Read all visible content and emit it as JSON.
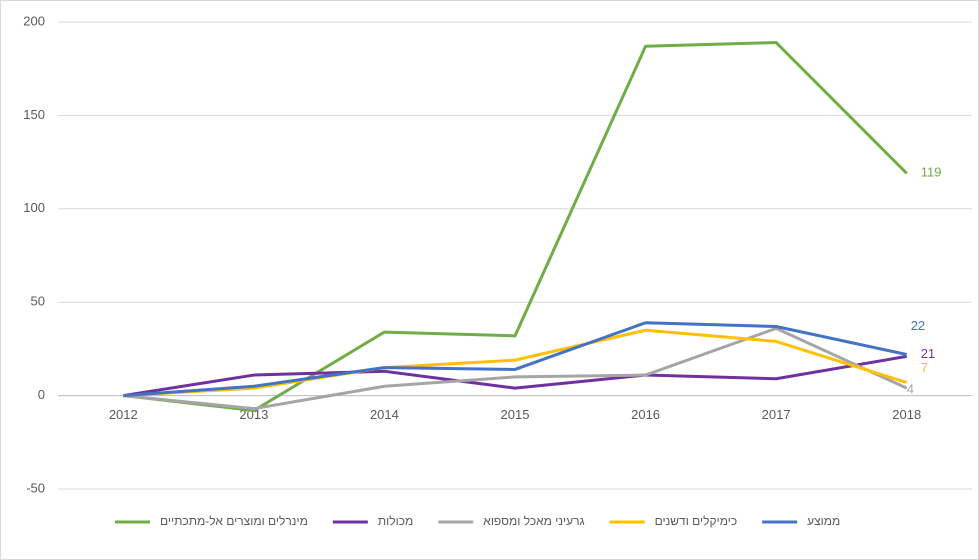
{
  "chart_data": {
    "type": "line",
    "categories": [
      "2012",
      "2013",
      "2014",
      "2015",
      "2016",
      "2017",
      "2018"
    ],
    "series": [
      {
        "name": "מינרלים ומוצרים אל-מתכתיים",
        "color": "#70ad47",
        "values": [
          0,
          -8,
          34,
          32,
          187,
          189,
          119
        ]
      },
      {
        "name": "מכולות",
        "color": "#7030a0",
        "values": [
          0,
          11,
          13,
          4,
          11,
          9,
          21
        ]
      },
      {
        "name": "גרעיני מאכל ומספוא",
        "color": "#a5a5a5",
        "values": [
          0,
          -7,
          5,
          10,
          11,
          36,
          4
        ]
      },
      {
        "name": "כימיקלים ודשנים",
        "color": "#ffc000",
        "values": [
          0,
          4,
          15,
          19,
          35,
          29,
          7
        ]
      },
      {
        "name": "ממוצע",
        "color": "#4472c4",
        "values": [
          0,
          5,
          15,
          14,
          39,
          37,
          22
        ]
      }
    ],
    "ylim": [
      -50,
      200
    ],
    "yticks": [
      -50,
      0,
      50,
      100,
      150,
      200
    ],
    "grid": true,
    "legend": "bottom"
  }
}
